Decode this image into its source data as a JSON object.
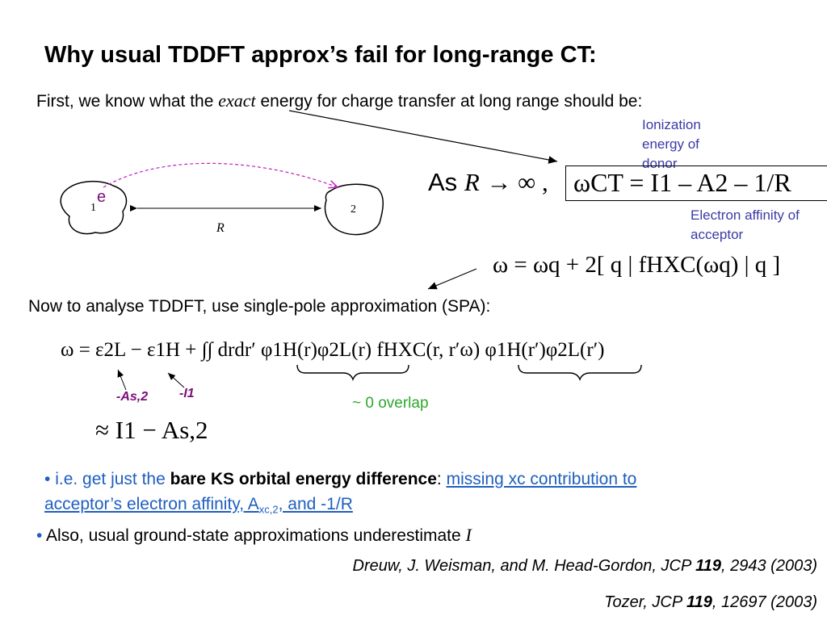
{
  "title": "Why usual TDDFT approx’s fail for long-range CT:",
  "intro": {
    "before": "First, we know what the ",
    "emph": "exact",
    "after": " energy for charge transfer at long range should be:"
  },
  "diagram": {
    "electron": "e",
    "donor_label": "1",
    "acceptor_label": "2",
    "distance_label": "R"
  },
  "annotations": {
    "ionization": "Ionization energy of donor",
    "affinity": "Electron affinity of acceptor"
  },
  "equations": {
    "limit_prefix": "As",
    "limit_var": "R",
    "limit_arrow": "→ ∞ ,",
    "omega_ct": "ωCT = I1 – A2 – 1/R",
    "omega_q": "ω = ωq + 2[ q | fHXC(ωq) | q ]",
    "spa": "ω = ε2L − ε1H + ∫∫ drdr′ φ1H(r)φ2L(r) fHXC(r, r′ω) φ1H(r′)φ2L(r′)",
    "approx": "≈ I1 − As,2"
  },
  "spa_heading": "Now to analyse TDDFT, use single-pole approximation (SPA):",
  "labels": {
    "minus_as2": "-As,2",
    "minus_i1": "-I1",
    "overlap": "~ 0  overlap"
  },
  "bullets": {
    "b1_prefix": "i.e. get just the ",
    "b1_bold": "bare KS orbital energy difference",
    "b1_colon": ": ",
    "b1_link_line1": "missing xc contribution to",
    "b1_link_line2a": "acceptor’s electron affinity, A",
    "b1_link_sub": "xc,2",
    "b1_link_line2b": ",  and -1/R",
    "b2_text": "Also, usual ground-state approximations underestimate ",
    "b2_var": "I"
  },
  "references": {
    "ref1_text": "Dreuw, J. Weisman, and M. Head-Gordon, JCP ",
    "ref1_vol": "119",
    "ref1_rest": ", 2943 (2003)",
    "ref2_text": "Tozer, JCP ",
    "ref2_vol": "119",
    "ref2_rest": ", 12697 (2003)"
  },
  "colors": {
    "annotation_blue": "#3a3aa6",
    "link_blue": "#1f5fbf",
    "label_purple": "#7a0e7a",
    "overlap_green": "#2ea62e",
    "electron_path": "#c020c0"
  }
}
